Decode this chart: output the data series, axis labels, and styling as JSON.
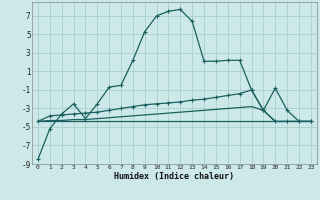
{
  "title": "",
  "xlabel": "Humidex (Indice chaleur)",
  "bg_color": "#cce8e8",
  "grid_color": "#aacece",
  "line_color": "#1a6060",
  "xlim": [
    -0.5,
    23.5
  ],
  "ylim": [
    -9,
    8.5
  ],
  "xticks": [
    0,
    1,
    2,
    3,
    4,
    5,
    6,
    7,
    8,
    9,
    10,
    11,
    12,
    13,
    14,
    15,
    16,
    17,
    18,
    19,
    20,
    21,
    22,
    23
  ],
  "yticks": [
    -9,
    -7,
    -5,
    -3,
    -1,
    1,
    3,
    5,
    7
  ],
  "series1_x": [
    0,
    1,
    2,
    3,
    4,
    5,
    6,
    7,
    8,
    9,
    10,
    11,
    12,
    13,
    14,
    15,
    16,
    17,
    18,
    19,
    20,
    21,
    22,
    23
  ],
  "series1_y": [
    -8.5,
    -5.2,
    -3.6,
    -2.5,
    -4.1,
    -2.5,
    -0.7,
    -0.5,
    2.2,
    5.3,
    7.0,
    7.5,
    7.7,
    6.4,
    2.1,
    2.1,
    2.2,
    2.2,
    -1.0,
    -3.2,
    -0.8,
    -3.2,
    -4.4,
    -4.4
  ],
  "series2_x": [
    0,
    1,
    2,
    3,
    4,
    5,
    6,
    7,
    8,
    9,
    10,
    11,
    12,
    13,
    14,
    15,
    16,
    17,
    18,
    19,
    20,
    21,
    22,
    23
  ],
  "series2_y": [
    -4.4,
    -3.8,
    -3.7,
    -3.6,
    -3.5,
    -3.4,
    -3.2,
    -3.0,
    -2.8,
    -2.6,
    -2.5,
    -2.4,
    -2.3,
    -2.1,
    -2.0,
    -1.8,
    -1.6,
    -1.4,
    -1.0,
    -3.2,
    -4.4,
    -4.4,
    -4.4,
    -4.4
  ],
  "series3_x": [
    0,
    1,
    2,
    3,
    4,
    5,
    6,
    7,
    8,
    9,
    10,
    11,
    12,
    13,
    14,
    15,
    16,
    17,
    18,
    19,
    20,
    21,
    22,
    23
  ],
  "series3_y": [
    -4.4,
    -4.3,
    -4.3,
    -4.2,
    -4.2,
    -4.1,
    -4.0,
    -3.9,
    -3.8,
    -3.7,
    -3.6,
    -3.5,
    -3.4,
    -3.3,
    -3.2,
    -3.1,
    -3.0,
    -2.9,
    -2.8,
    -3.2,
    -4.4,
    -4.4,
    -4.4,
    -4.4
  ],
  "series4_x": [
    0,
    23
  ],
  "series4_y": [
    -4.4,
    -4.4
  ]
}
